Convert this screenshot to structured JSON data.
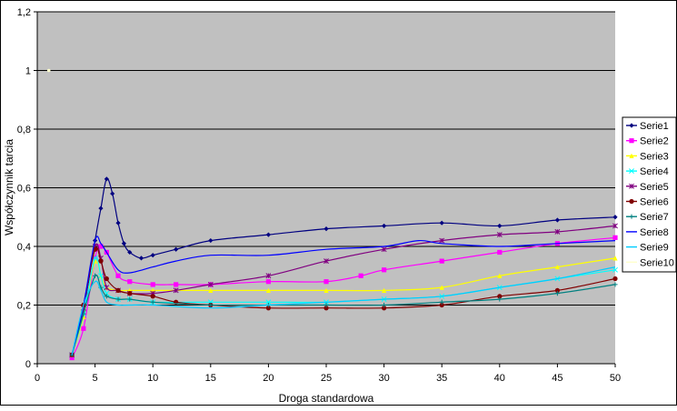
{
  "chart_data": {
    "type": "line",
    "title": "",
    "xlabel": "Droga standardowa",
    "ylabel": "Współczynnik tarcia",
    "xlim": [
      0,
      50
    ],
    "ylim": [
      0,
      1.2
    ],
    "xticks": [
      "0",
      "5",
      "10",
      "15",
      "20",
      "25",
      "30",
      "35",
      "40",
      "45",
      "50"
    ],
    "yticks": [
      "0",
      "0,2",
      "0,4",
      "0,6",
      "0,8",
      "1",
      "1,2"
    ],
    "grid": "horizontal",
    "legend": "right",
    "plot_background": "#c0c0c0",
    "series": [
      {
        "name": "Serie1",
        "color": "#000080",
        "marker": "diamond",
        "x": [
          3,
          4,
          5,
          5.5,
          6,
          6.5,
          7,
          7.5,
          8,
          9,
          10,
          12,
          15,
          20,
          25,
          30,
          35,
          40,
          45,
          50
        ],
        "y": [
          0.03,
          0.18,
          0.42,
          0.53,
          0.63,
          0.58,
          0.48,
          0.41,
          0.38,
          0.36,
          0.37,
          0.39,
          0.42,
          0.44,
          0.46,
          0.47,
          0.48,
          0.47,
          0.49,
          0.5
        ]
      },
      {
        "name": "Serie2",
        "color": "#ff00ff",
        "marker": "square",
        "x": [
          3,
          4,
          5,
          5.5,
          6,
          7,
          8,
          10,
          12,
          15,
          20,
          25,
          28,
          30,
          35,
          40,
          45,
          50
        ],
        "y": [
          0.02,
          0.12,
          0.36,
          0.4,
          0.38,
          0.3,
          0.28,
          0.27,
          0.27,
          0.27,
          0.28,
          0.28,
          0.3,
          0.32,
          0.35,
          0.38,
          0.41,
          0.43
        ]
      },
      {
        "name": "Serie3",
        "color": "#ffff00",
        "marker": "triangle",
        "x": [
          3,
          4,
          5,
          5.5,
          6,
          7,
          8,
          10,
          15,
          20,
          25,
          30,
          35,
          40,
          45,
          50
        ],
        "y": [
          0.03,
          0.16,
          0.35,
          0.3,
          0.26,
          0.25,
          0.25,
          0.25,
          0.25,
          0.25,
          0.25,
          0.25,
          0.26,
          0.3,
          0.33,
          0.36
        ]
      },
      {
        "name": "Serie4",
        "color": "#00ffff",
        "marker": "x",
        "x": [
          3,
          4,
          5,
          5.5,
          6,
          7,
          8,
          10,
          15,
          20,
          25,
          30,
          35,
          40,
          45,
          50
        ],
        "y": [
          0.03,
          0.17,
          0.36,
          0.3,
          0.24,
          0.22,
          0.22,
          0.21,
          0.21,
          0.21,
          0.21,
          0.22,
          0.23,
          0.26,
          0.29,
          0.32
        ]
      },
      {
        "name": "Serie5",
        "color": "#800080",
        "marker": "star",
        "x": [
          3,
          4,
          5,
          5.5,
          6,
          7,
          8,
          10,
          12,
          15,
          20,
          25,
          30,
          35,
          40,
          45,
          50
        ],
        "y": [
          0.03,
          0.19,
          0.4,
          0.36,
          0.26,
          0.25,
          0.24,
          0.24,
          0.25,
          0.27,
          0.3,
          0.35,
          0.39,
          0.42,
          0.44,
          0.45,
          0.47
        ]
      },
      {
        "name": "Serie6",
        "color": "#800000",
        "marker": "circle",
        "x": [
          3,
          4,
          5,
          5.5,
          6,
          7,
          8,
          10,
          12,
          15,
          20,
          25,
          30,
          35,
          40,
          45,
          50
        ],
        "y": [
          0.03,
          0.2,
          0.39,
          0.35,
          0.29,
          0.25,
          0.24,
          0.23,
          0.21,
          0.2,
          0.19,
          0.19,
          0.19,
          0.2,
          0.23,
          0.25,
          0.29
        ]
      },
      {
        "name": "Serie7",
        "color": "#008080",
        "marker": "plus",
        "x": [
          3,
          4,
          5,
          5.5,
          6,
          7,
          8,
          10,
          15,
          20,
          25,
          30,
          35,
          40,
          45,
          50
        ],
        "y": [
          0.03,
          0.17,
          0.3,
          0.26,
          0.23,
          0.22,
          0.22,
          0.21,
          0.2,
          0.2,
          0.2,
          0.2,
          0.21,
          0.22,
          0.24,
          0.27
        ]
      },
      {
        "name": "Serie8",
        "color": "#0000ff",
        "marker": "none",
        "x": [
          3,
          4,
          5,
          5.5,
          6,
          7,
          8,
          10,
          12,
          15,
          20,
          25,
          30,
          33,
          35,
          40,
          45,
          50
        ],
        "y": [
          0.03,
          0.2,
          0.42,
          0.41,
          0.38,
          0.32,
          0.31,
          0.33,
          0.35,
          0.37,
          0.37,
          0.39,
          0.4,
          0.42,
          0.41,
          0.4,
          0.41,
          0.42
        ]
      },
      {
        "name": "Serie9",
        "color": "#00ccff",
        "marker": "none",
        "x": [
          3,
          4,
          5,
          5.5,
          6,
          7,
          8,
          10,
          15,
          20,
          25,
          30,
          35,
          40,
          45,
          50
        ],
        "y": [
          0.03,
          0.2,
          0.28,
          0.25,
          0.21,
          0.2,
          0.2,
          0.2,
          0.19,
          0.2,
          0.21,
          0.22,
          0.23,
          0.26,
          0.29,
          0.33
        ]
      },
      {
        "name": "Serie10",
        "color": "#ffffcc",
        "marker": "point",
        "x": [
          1
        ],
        "y": [
          1.0
        ]
      }
    ]
  }
}
